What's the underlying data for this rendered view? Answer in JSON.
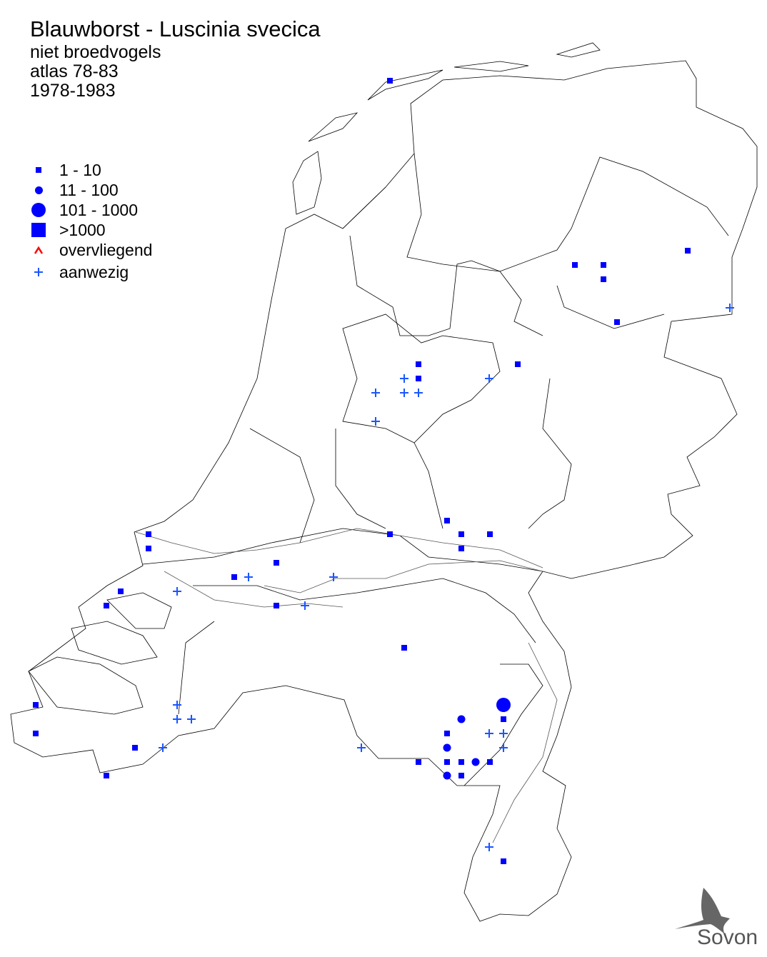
{
  "header": {
    "title": "Blauwborst - Luscinia svecica",
    "subtitle_lines": [
      "niet broedvogels",
      "atlas 78-83",
      "1978-1983"
    ]
  },
  "legend": {
    "items": [
      {
        "symbol": "small-square",
        "label": "1 - 10",
        "color": "#0000ff"
      },
      {
        "symbol": "small-circle",
        "label": "11 - 100",
        "color": "#0000ff"
      },
      {
        "symbol": "large-circle",
        "label": "101 - 1000",
        "color": "#0000ff"
      },
      {
        "symbol": "large-square",
        "label": ">1000",
        "color": "#0000ff"
      },
      {
        "symbol": "caret",
        "label": "overvliegend",
        "color": "#ff0000"
      },
      {
        "symbol": "plus",
        "label": "aanwezig",
        "color": "#1a56ff"
      }
    ]
  },
  "logo": {
    "text": "Sovon"
  },
  "colors": {
    "marker": "#0000ff",
    "plus": "#1a56ff",
    "overvliegend": "#ff0000",
    "outline": "#000000"
  }
}
